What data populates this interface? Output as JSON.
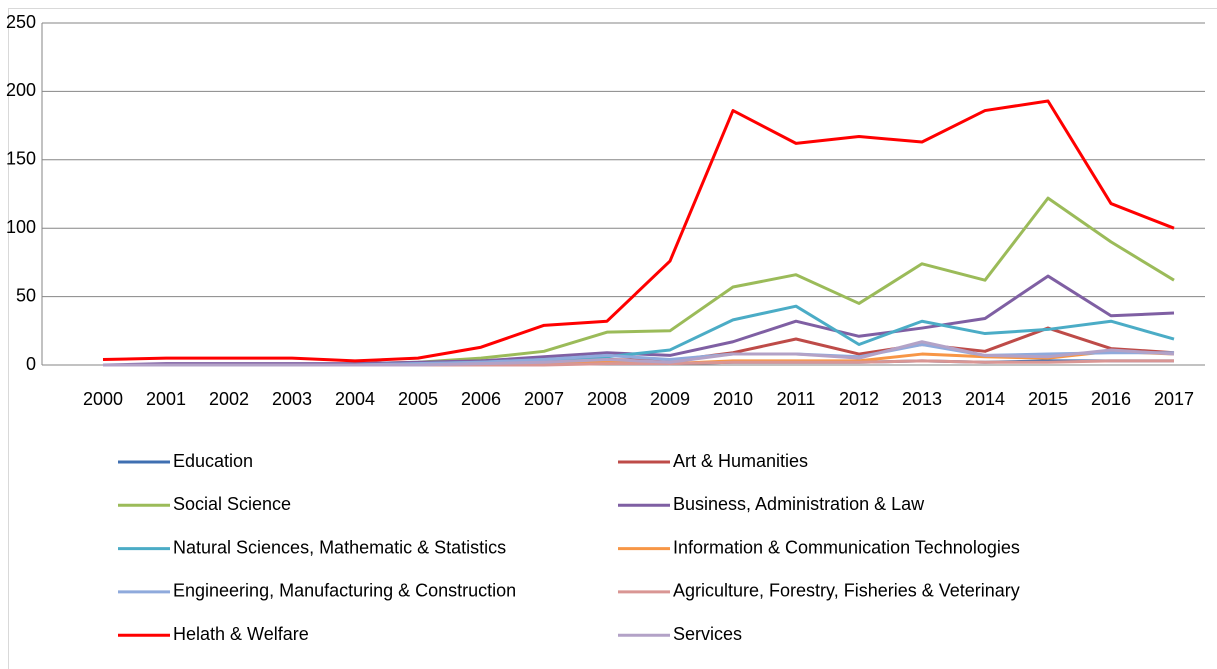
{
  "chart_data": {
    "type": "line",
    "categories": [
      "2000",
      "2001",
      "2002",
      "2003",
      "2004",
      "2005",
      "2006",
      "2007",
      "2008",
      "2009",
      "2010",
      "2011",
      "2012",
      "2013",
      "2014",
      "2015",
      "2016",
      "2017"
    ],
    "ylim": [
      0,
      250
    ],
    "yticks": [
      0,
      50,
      100,
      150,
      200,
      250
    ],
    "grid": true,
    "legend": "bottom",
    "series": [
      {
        "name": "Education",
        "color": "#3f6fb1",
        "values": [
          0,
          0,
          0,
          0,
          0,
          0,
          1,
          1,
          1,
          1,
          2,
          2,
          2,
          3,
          2,
          3,
          3,
          3
        ]
      },
      {
        "name": "Art & Humanities",
        "color": "#be4b48",
        "values": [
          0,
          0,
          0,
          0,
          0,
          1,
          1,
          2,
          4,
          3,
          9,
          19,
          8,
          15,
          10,
          27,
          12,
          9
        ]
      },
      {
        "name": "Social Science",
        "color": "#9bbb59",
        "values": [
          0,
          0,
          0,
          0,
          1,
          2,
          5,
          10,
          24,
          25,
          57,
          66,
          45,
          74,
          62,
          122,
          90,
          62
        ]
      },
      {
        "name": "Business, Administration & Law",
        "color": "#7f5fa3",
        "values": [
          0,
          1,
          1,
          1,
          1,
          2,
          3,
          6,
          9,
          7,
          17,
          32,
          21,
          27,
          34,
          65,
          36,
          38
        ]
      },
      {
        "name": "Natural Sciences, Mathematic & Statistics",
        "color": "#4bacc6",
        "values": [
          0,
          0,
          0,
          0,
          0,
          1,
          2,
          4,
          6,
          11,
          33,
          43,
          15,
          32,
          23,
          26,
          32,
          19
        ]
      },
      {
        "name": "Information & Communication Technologies",
        "color": "#f79646",
        "values": [
          0,
          0,
          0,
          0,
          0,
          0,
          0,
          1,
          3,
          1,
          3,
          3,
          3,
          8,
          6,
          5,
          10,
          8
        ]
      },
      {
        "name": "Engineering, Manufacturing & Construction",
        "color": "#8faadc",
        "values": [
          0,
          0,
          0,
          0,
          0,
          1,
          2,
          4,
          7,
          4,
          8,
          8,
          6,
          15,
          7,
          8,
          9,
          9
        ]
      },
      {
        "name": "Agriculture, Forestry, Fisheries & Veterinary",
        "color": "#d99694",
        "values": [
          0,
          0,
          0,
          0,
          0,
          0,
          0,
          0,
          1,
          1,
          2,
          2,
          2,
          3,
          2,
          2,
          3,
          3
        ]
      },
      {
        "name": "Helath & Welfare",
        "color": "#ff0000",
        "values": [
          4,
          5,
          5,
          5,
          3,
          5,
          13,
          29,
          32,
          76,
          186,
          162,
          167,
          163,
          186,
          193,
          118,
          100
        ]
      },
      {
        "name": "Services",
        "color": "#b3a2c7",
        "values": [
          0,
          0,
          0,
          0,
          0,
          0,
          1,
          2,
          4,
          2,
          8,
          8,
          5,
          17,
          7,
          6,
          11,
          8
        ]
      }
    ]
  }
}
